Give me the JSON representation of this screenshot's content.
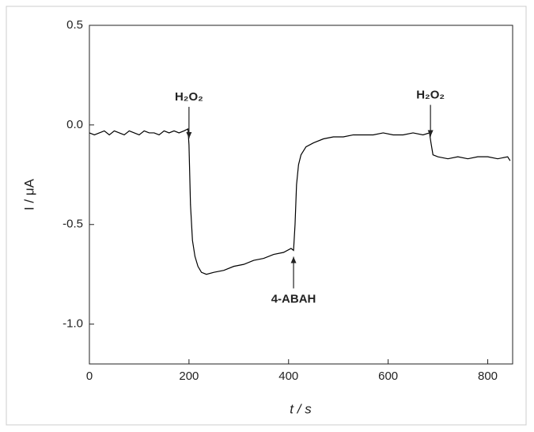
{
  "chart_data": {
    "type": "line",
    "xlabel": "t / s",
    "ylabel": "I / μA",
    "xlim": [
      0,
      850
    ],
    "xticks": [
      0,
      200,
      400,
      600,
      800
    ],
    "ylim": [
      -1.2,
      0.5
    ],
    "yticks": [
      {
        "value": 0.5,
        "label": "0.5"
      },
      {
        "value": 0,
        "label": "0.0"
      },
      {
        "value": -0.5,
        "label": "-0.5"
      },
      {
        "value": -1,
        "label": "-1.0"
      }
    ],
    "series": [
      {
        "color": "#000000",
        "x": [
          0,
          10,
          20,
          30,
          40,
          50,
          60,
          70,
          80,
          90,
          100,
          110,
          120,
          130,
          140,
          150,
          160,
          170,
          180,
          190,
          198,
          200,
          203,
          207,
          212,
          218,
          225,
          235,
          250,
          270,
          290,
          310,
          330,
          350,
          370,
          390,
          405,
          410,
          413,
          416,
          420,
          425,
          435,
          450,
          470,
          490,
          510,
          530,
          550,
          570,
          590,
          610,
          630,
          650,
          670,
          683,
          686,
          690,
          700,
          720,
          740,
          760,
          780,
          800,
          820,
          840,
          845
        ],
        "values": [
          -0.04,
          -0.05,
          -0.04,
          -0.03,
          -0.05,
          -0.03,
          -0.04,
          -0.05,
          -0.03,
          -0.04,
          -0.05,
          -0.03,
          -0.04,
          -0.04,
          -0.05,
          -0.03,
          -0.04,
          -0.03,
          -0.04,
          -0.03,
          -0.02,
          -0.1,
          -0.4,
          -0.58,
          -0.66,
          -0.71,
          -0.74,
          -0.75,
          -0.74,
          -0.73,
          -0.71,
          -0.7,
          -0.68,
          -0.67,
          -0.65,
          -0.64,
          -0.62,
          -0.63,
          -0.5,
          -0.3,
          -0.2,
          -0.15,
          -0.11,
          -0.09,
          -0.07,
          -0.06,
          -0.06,
          -0.05,
          -0.05,
          -0.05,
          -0.04,
          -0.05,
          -0.05,
          -0.04,
          -0.05,
          -0.04,
          -0.09,
          -0.15,
          -0.16,
          -0.17,
          -0.16,
          -0.17,
          -0.16,
          -0.16,
          -0.17,
          -0.16,
          -0.18
        ]
      }
    ],
    "annotations": [
      {
        "text": "H₂O₂",
        "x": 200,
        "position": "above"
      },
      {
        "text": "4-ABAH",
        "x": 410,
        "position": "below"
      },
      {
        "text": "H₂O₂",
        "x": 685,
        "position": "above"
      }
    ]
  }
}
